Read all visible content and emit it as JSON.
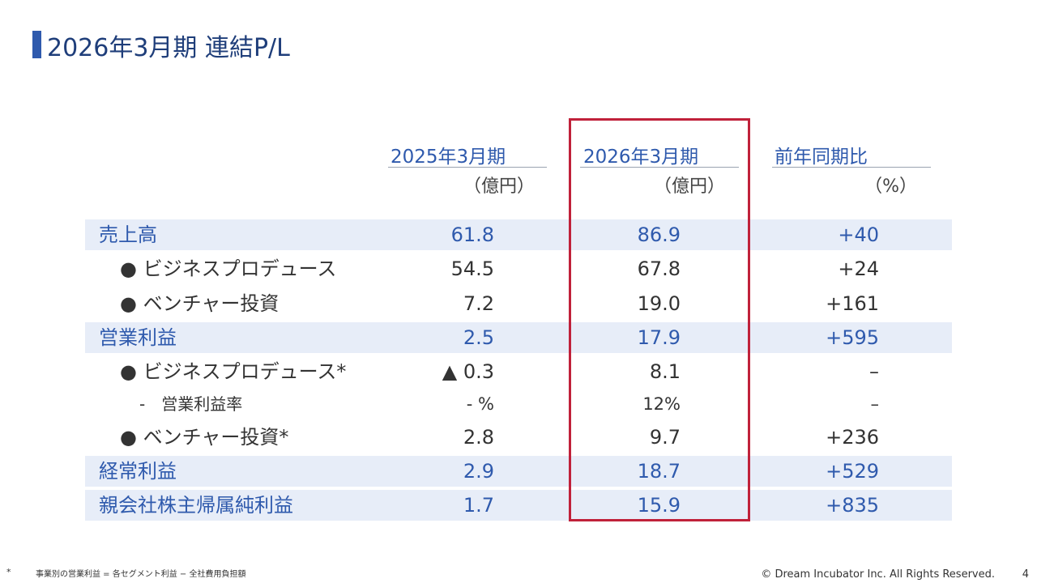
{
  "title": "2026年3月期 連結P/L",
  "columns": [
    {
      "header": "2025年3月期",
      "unit": "（億円）"
    },
    {
      "header": "2026年3月期",
      "unit": "（億円）"
    },
    {
      "header": "前年同期比",
      "unit": "（%）"
    }
  ],
  "rows": [
    {
      "label": "売上高",
      "v1": "61.8",
      "v2": "86.9",
      "v3": "+40"
    },
    {
      "label": "● ビジネスプロデュース",
      "v1": "54.5",
      "v2": "67.8",
      "v3": "+24"
    },
    {
      "label": "● ベンチャー投資",
      "v1": "7.2",
      "v2": "19.0",
      "v3": "+161"
    },
    {
      "label": "営業利益",
      "v1": "2.5",
      "v2": "17.9",
      "v3": "+595"
    },
    {
      "label": "● ビジネスプロデュース*",
      "v1": "▲ 0.3",
      "v2": "8.1",
      "v3": "–"
    },
    {
      "label": "-　営業利益率",
      "v1": "- %",
      "v2": "12%",
      "v3": "–"
    },
    {
      "label": "● ベンチャー投資*",
      "v1": "2.8",
      "v2": "9.7",
      "v3": "+236"
    },
    {
      "label": "経常利益",
      "v1": "2.9",
      "v2": "18.7",
      "v3": "+529"
    },
    {
      "label": "親会社株主帰属純利益",
      "v1": "1.7",
      "v2": "15.9",
      "v3": "+835"
    }
  ],
  "footnote_marker": "*",
  "footnote": "事業別の営業利益 = 各セグメント利益 − 全社費用負担額",
  "copyright": "© Dream Incubator Inc. All Rights Reserved.",
  "page_number": "4",
  "colors": {
    "accent": "#2f5aad",
    "band": "#e7edf8",
    "highlight": "#c0213a"
  }
}
